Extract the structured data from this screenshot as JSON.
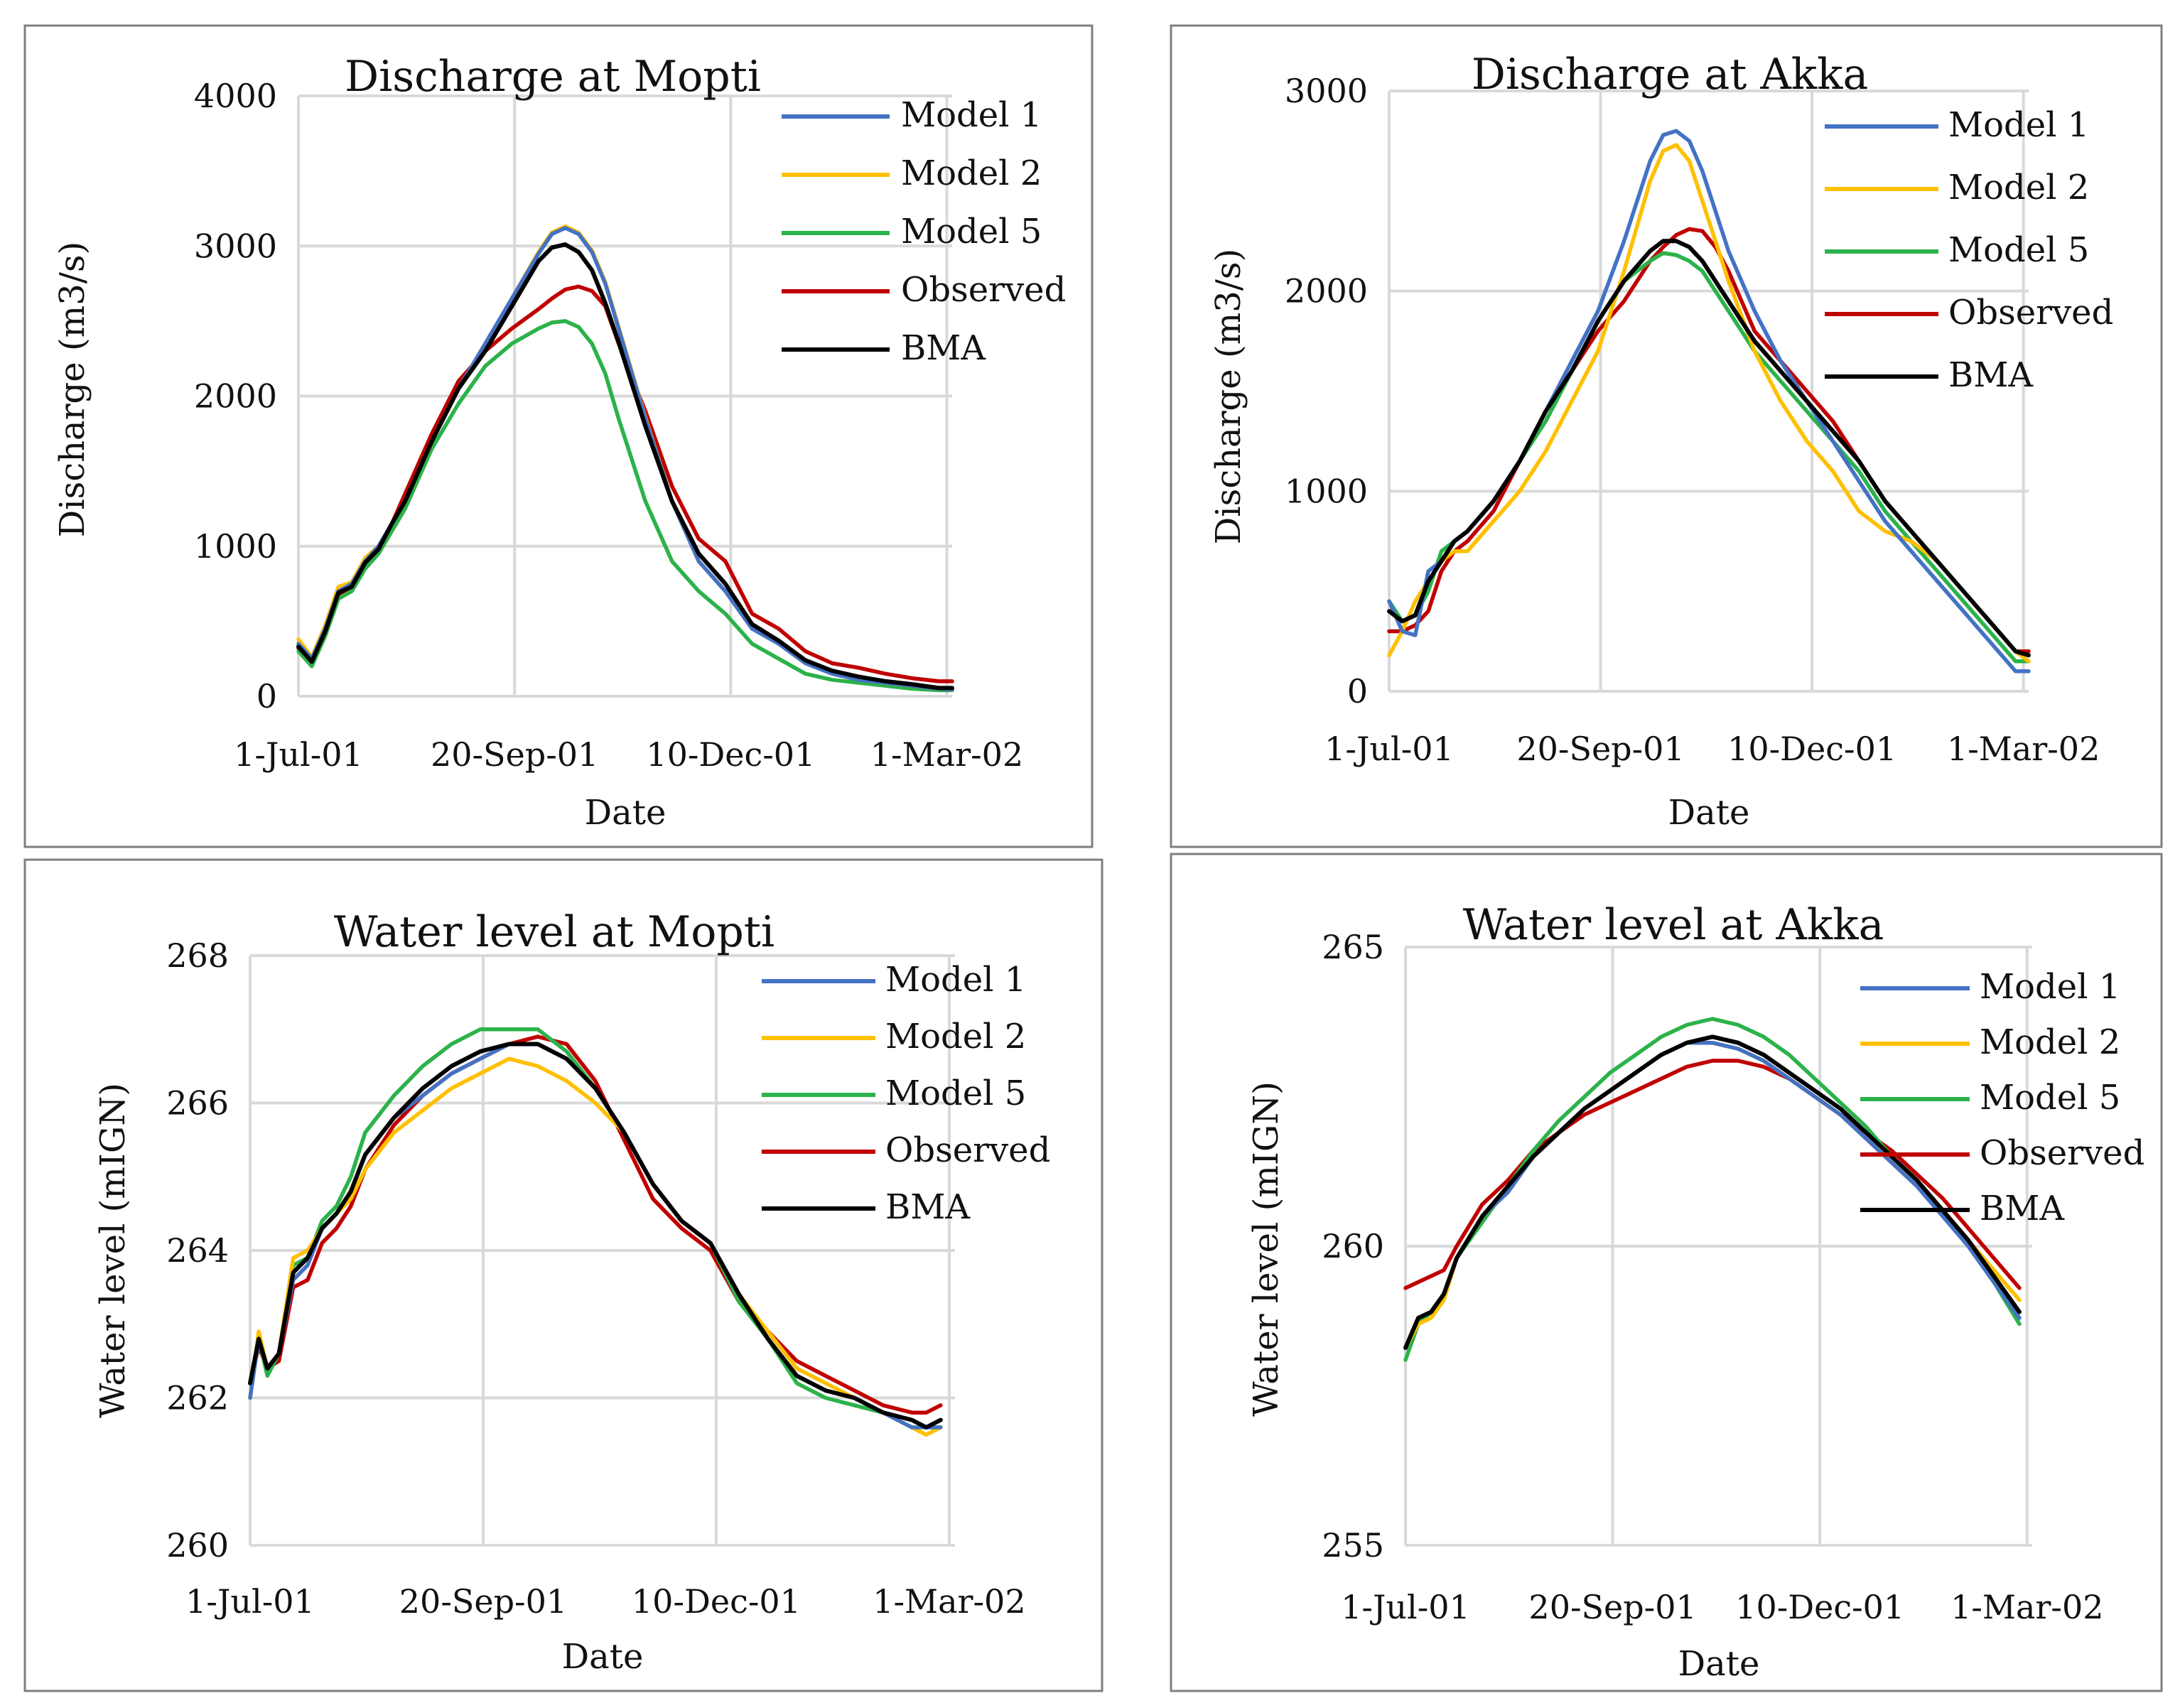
{
  "figure": {
    "series_colors": {
      "Model 1": "#4472C4",
      "Model 2": "#FFC000",
      "Model 5": "#2CB24A",
      "Observed": "#C00000",
      "BMA": "#000000"
    }
  },
  "chart_data": [
    {
      "type": "line",
      "title": "Discharge at Mopti",
      "xlabel": "Date",
      "ylabel": "Discharge (m3/s)",
      "ylim": [
        0,
        4000
      ],
      "yticks": [
        0,
        1000,
        2000,
        3000,
        4000
      ],
      "ytick_labels": [
        "0",
        "1000",
        "2000",
        "3000",
        "4000"
      ],
      "xlim": [
        0,
        245
      ],
      "xticks": [
        0,
        81,
        162,
        243
      ],
      "xtick_labels": [
        "1-Jul-01",
        "20-Sep-01",
        "10-Dec-01",
        "1-Mar-02"
      ],
      "legend": [
        "Model 1",
        "Model 2",
        "Model 5",
        "Observed",
        "BMA"
      ],
      "legend_position": "top-right",
      "x": [
        0,
        5,
        10,
        15,
        20,
        25,
        30,
        35,
        40,
        50,
        60,
        70,
        80,
        90,
        95,
        100,
        105,
        110,
        115,
        120,
        130,
        140,
        150,
        160,
        170,
        180,
        190,
        200,
        210,
        220,
        230,
        240,
        245
      ],
      "series": [
        {
          "name": "Model 1",
          "values": [
            350,
            250,
            450,
            700,
            750,
            900,
            1000,
            1150,
            1300,
            1700,
            2050,
            2350,
            2650,
            2950,
            3080,
            3120,
            3080,
            2960,
            2750,
            2450,
            1850,
            1300,
            900,
            700,
            450,
            350,
            220,
            150,
            110,
            90,
            70,
            50,
            45
          ]
        },
        {
          "name": "Model 2",
          "values": [
            380,
            260,
            470,
            730,
            760,
            920,
            1000,
            1150,
            1300,
            1700,
            2050,
            2350,
            2650,
            2960,
            3090,
            3130,
            3090,
            2970,
            2760,
            2460,
            1860,
            1300,
            900,
            700,
            460,
            350,
            230,
            160,
            115,
            90,
            70,
            50,
            45
          ]
        },
        {
          "name": "Model 5",
          "values": [
            300,
            200,
            400,
            650,
            700,
            850,
            950,
            1100,
            1250,
            1650,
            1950,
            2200,
            2350,
            2450,
            2490,
            2500,
            2460,
            2350,
            2150,
            1850,
            1300,
            900,
            700,
            550,
            350,
            250,
            150,
            110,
            90,
            70,
            50,
            40,
            40
          ]
        },
        {
          "name": "Observed",
          "values": [
            320,
            230,
            430,
            680,
            730,
            880,
            980,
            1150,
            1350,
            1750,
            2100,
            2300,
            2450,
            2580,
            2650,
            2710,
            2730,
            2700,
            2600,
            2350,
            1900,
            1400,
            1050,
            900,
            550,
            450,
            300,
            220,
            190,
            150,
            120,
            100,
            100
          ]
        },
        {
          "name": "BMA",
          "values": [
            330,
            230,
            430,
            690,
            730,
            890,
            980,
            1150,
            1300,
            1700,
            2050,
            2300,
            2600,
            2900,
            2990,
            3010,
            2960,
            2840,
            2620,
            2360,
            1800,
            1300,
            950,
            750,
            480,
            370,
            240,
            170,
            130,
            100,
            80,
            55,
            55
          ]
        }
      ]
    },
    {
      "type": "line",
      "title": "Discharge at Akka",
      "xlabel": "Date",
      "ylabel": "Discharge (m3/s)",
      "ylim": [
        0,
        3000
      ],
      "yticks": [
        0,
        1000,
        2000,
        3000
      ],
      "ytick_labels": [
        "0",
        "1000",
        "2000",
        "3000"
      ],
      "xlim": [
        0,
        245
      ],
      "xticks": [
        0,
        81,
        162,
        243
      ],
      "xtick_labels": [
        "1-Jul-01",
        "20-Sep-01",
        "10-Dec-01",
        "1-Mar-02"
      ],
      "legend": [
        "Model 1",
        "Model 2",
        "Model 5",
        "Observed",
        "BMA"
      ],
      "legend_position": "top-right",
      "x": [
        0,
        5,
        10,
        15,
        20,
        25,
        30,
        40,
        50,
        60,
        70,
        80,
        90,
        100,
        105,
        110,
        115,
        120,
        125,
        130,
        140,
        150,
        160,
        170,
        180,
        190,
        200,
        210,
        220,
        230,
        240,
        245
      ],
      "series": [
        {
          "name": "Model 1",
          "values": [
            450,
            300,
            280,
            600,
            650,
            750,
            800,
            950,
            1150,
            1400,
            1650,
            1900,
            2250,
            2650,
            2780,
            2800,
            2750,
            2600,
            2400,
            2200,
            1900,
            1650,
            1450,
            1250,
            1050,
            850,
            700,
            550,
            400,
            250,
            100,
            100
          ]
        },
        {
          "name": "Model 2",
          "values": [
            180,
            300,
            450,
            550,
            650,
            700,
            700,
            850,
            1000,
            1200,
            1450,
            1700,
            2100,
            2550,
            2700,
            2730,
            2650,
            2450,
            2250,
            2050,
            1700,
            1450,
            1250,
            1100,
            900,
            800,
            750,
            650,
            500,
            350,
            200,
            150
          ]
        },
        {
          "name": "Model 5",
          "values": [
            450,
            350,
            380,
            500,
            700,
            750,
            800,
            950,
            1150,
            1350,
            1600,
            1850,
            2050,
            2150,
            2190,
            2180,
            2150,
            2100,
            2000,
            1900,
            1700,
            1550,
            1400,
            1250,
            1100,
            900,
            750,
            600,
            450,
            300,
            150,
            150
          ]
        },
        {
          "name": "Observed",
          "values": [
            300,
            300,
            330,
            400,
            600,
            700,
            750,
            900,
            1150,
            1400,
            1600,
            1800,
            1950,
            2150,
            2220,
            2280,
            2310,
            2300,
            2220,
            2100,
            1800,
            1650,
            1500,
            1350,
            1150,
            950,
            800,
            650,
            500,
            350,
            200,
            200
          ]
        },
        {
          "name": "BMA",
          "values": [
            400,
            350,
            380,
            550,
            650,
            750,
            800,
            950,
            1150,
            1400,
            1600,
            1850,
            2050,
            2200,
            2250,
            2250,
            2220,
            2150,
            2050,
            1950,
            1750,
            1600,
            1450,
            1300,
            1150,
            950,
            800,
            650,
            500,
            350,
            200,
            180
          ]
        }
      ]
    },
    {
      "type": "line",
      "title": "Water level at Mopti",
      "xlabel": "Date",
      "ylabel": "Water level (mIGN)",
      "ylim": [
        260,
        268
      ],
      "yticks": [
        260,
        262,
        264,
        266,
        268
      ],
      "ytick_labels": [
        "260",
        "262",
        "264",
        "266",
        "268"
      ],
      "xlim": [
        0,
        245
      ],
      "xticks": [
        0,
        81,
        162,
        243
      ],
      "xtick_labels": [
        "1-Jul-01",
        "20-Sep-01",
        "10-Dec-01",
        "1-Mar-02"
      ],
      "legend": [
        "Model 1",
        "Model 2",
        "Model 5",
        "Observed",
        "BMA"
      ],
      "legend_position": "top-right",
      "x": [
        0,
        3,
        6,
        10,
        15,
        20,
        25,
        30,
        35,
        40,
        50,
        60,
        70,
        80,
        90,
        100,
        110,
        120,
        130,
        140,
        150,
        160,
        170,
        180,
        190,
        200,
        210,
        220,
        230,
        235,
        240
      ],
      "series": [
        {
          "name": "Model 1",
          "values": [
            262.0,
            262.8,
            262.4,
            262.6,
            263.6,
            263.8,
            264.3,
            264.5,
            264.8,
            265.3,
            265.8,
            266.1,
            266.4,
            266.6,
            266.8,
            266.8,
            266.6,
            266.2,
            265.6,
            264.9,
            264.4,
            264.1,
            263.4,
            262.8,
            262.3,
            262.1,
            262.0,
            261.8,
            261.6,
            261.6,
            261.6
          ]
        },
        {
          "name": "Model 2",
          "values": [
            262.0,
            262.9,
            262.4,
            262.6,
            263.9,
            264.0,
            264.3,
            264.5,
            264.7,
            265.1,
            265.6,
            265.9,
            266.2,
            266.4,
            266.6,
            266.5,
            266.3,
            266.0,
            265.6,
            264.9,
            264.4,
            264.1,
            263.4,
            262.9,
            262.4,
            262.2,
            262.0,
            261.8,
            261.6,
            261.5,
            261.6
          ]
        },
        {
          "name": "Model 5",
          "values": [
            262.2,
            262.8,
            262.3,
            262.6,
            263.8,
            263.9,
            264.4,
            264.6,
            265.0,
            265.6,
            266.1,
            266.5,
            266.8,
            267.0,
            267.0,
            267.0,
            266.7,
            266.2,
            265.6,
            264.9,
            264.4,
            264.1,
            263.3,
            262.8,
            262.2,
            262.0,
            261.9,
            261.8,
            261.7,
            261.6,
            261.6
          ]
        },
        {
          "name": "Observed",
          "values": [
            262.2,
            262.7,
            262.4,
            262.5,
            263.5,
            263.6,
            264.1,
            264.3,
            264.6,
            265.1,
            265.7,
            266.1,
            266.4,
            266.6,
            266.8,
            266.9,
            266.8,
            266.3,
            265.5,
            264.7,
            264.3,
            264.0,
            263.3,
            262.9,
            262.5,
            262.3,
            262.1,
            261.9,
            261.8,
            261.8,
            261.9
          ]
        },
        {
          "name": "BMA",
          "values": [
            262.2,
            262.8,
            262.4,
            262.6,
            263.7,
            263.9,
            264.3,
            264.5,
            264.8,
            265.3,
            265.8,
            266.2,
            266.5,
            266.7,
            266.8,
            266.8,
            266.6,
            266.2,
            265.6,
            264.9,
            264.4,
            264.1,
            263.4,
            262.8,
            262.3,
            262.1,
            262.0,
            261.8,
            261.7,
            261.6,
            261.7
          ]
        }
      ]
    },
    {
      "type": "line",
      "title": "Water level at Akka",
      "xlabel": "Date",
      "ylabel": "Water level (mIGN)",
      "ylim": [
        255,
        265
      ],
      "yticks": [
        255,
        260,
        265
      ],
      "ytick_labels": [
        "255",
        "260",
        "265"
      ],
      "xlim": [
        0,
        245
      ],
      "xticks": [
        0,
        81,
        162,
        243
      ],
      "xtick_labels": [
        "1-Jul-01",
        "20-Sep-01",
        "10-Dec-01",
        "1-Mar-02"
      ],
      "legend": [
        "Model 1",
        "Model 2",
        "Model 5",
        "Observed",
        "BMA"
      ],
      "legend_position": "top-right",
      "x": [
        0,
        5,
        10,
        15,
        20,
        30,
        40,
        50,
        60,
        70,
        80,
        90,
        100,
        110,
        120,
        130,
        140,
        150,
        160,
        170,
        180,
        190,
        200,
        210,
        220,
        230,
        240
      ],
      "series": [
        {
          "name": "Model 1",
          "values": [
            258.3,
            258.8,
            258.9,
            259.2,
            259.8,
            260.5,
            260.9,
            261.5,
            261.9,
            262.3,
            262.6,
            262.9,
            263.2,
            263.4,
            263.4,
            263.3,
            263.1,
            262.8,
            262.5,
            262.2,
            261.8,
            261.4,
            261.0,
            260.5,
            260.0,
            259.4,
            258.8
          ]
        },
        {
          "name": "Model 2",
          "values": [
            258.3,
            258.7,
            258.8,
            259.1,
            259.8,
            260.5,
            260.9,
            261.5,
            261.9,
            262.3,
            262.6,
            262.9,
            263.2,
            263.4,
            263.4,
            263.3,
            263.1,
            262.8,
            262.5,
            262.2,
            261.8,
            261.4,
            261.0,
            260.6,
            260.1,
            259.6,
            259.1
          ]
        },
        {
          "name": "Model 5",
          "values": [
            258.1,
            258.7,
            258.9,
            259.2,
            259.8,
            260.4,
            261.0,
            261.6,
            262.1,
            262.5,
            262.9,
            263.2,
            263.5,
            263.7,
            263.8,
            263.7,
            263.5,
            263.2,
            262.8,
            262.4,
            262.0,
            261.5,
            261.1,
            260.6,
            260.0,
            259.4,
            258.7
          ]
        },
        {
          "name": "Observed",
          "values": [
            259.3,
            259.4,
            259.5,
            259.6,
            260.0,
            260.7,
            261.1,
            261.6,
            261.9,
            262.2,
            262.4,
            262.6,
            262.8,
            263.0,
            263.1,
            263.1,
            263.0,
            262.8,
            262.5,
            262.2,
            261.9,
            261.6,
            261.2,
            260.8,
            260.3,
            259.8,
            259.3
          ]
        },
        {
          "name": "BMA",
          "values": [
            258.3,
            258.8,
            258.9,
            259.2,
            259.8,
            260.5,
            261.0,
            261.5,
            261.9,
            262.3,
            262.6,
            262.9,
            263.2,
            263.4,
            263.5,
            263.4,
            263.2,
            262.9,
            262.6,
            262.3,
            261.9,
            261.5,
            261.1,
            260.6,
            260.1,
            259.5,
            258.9
          ]
        }
      ]
    }
  ]
}
